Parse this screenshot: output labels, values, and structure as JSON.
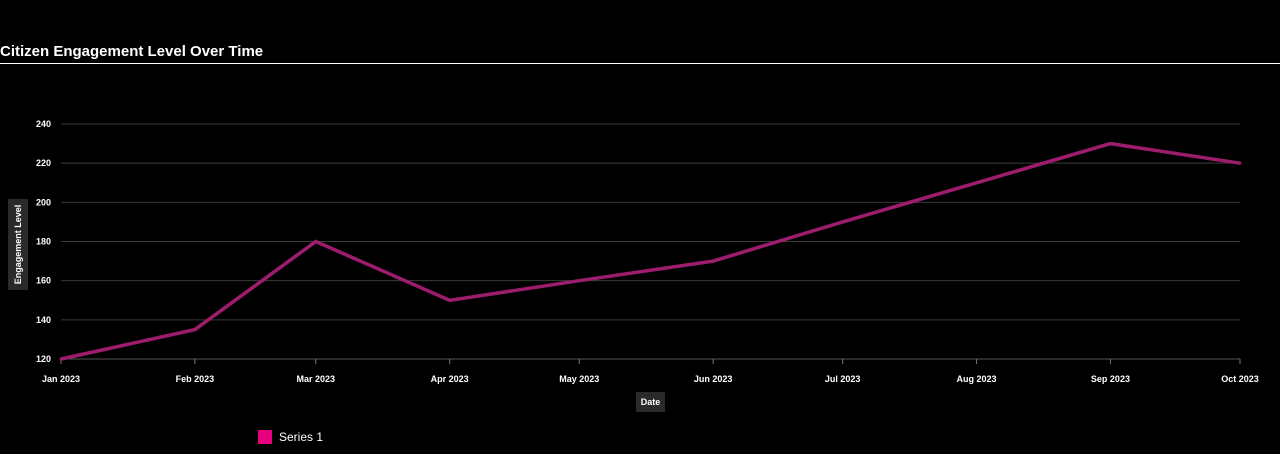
{
  "title": "Citizen Engagement Level Over Time",
  "colors": {
    "background": "#000000",
    "text": "#ffffff",
    "grid": "#3a3a3a",
    "line": "#9e1c6e",
    "legend_swatch": "#e6007e",
    "axis_title_bg": "#2a2a2a"
  },
  "legend": {
    "items": [
      {
        "label": "Series 1",
        "color": "#e6007e"
      }
    ]
  },
  "chart_data": {
    "type": "line",
    "title": "Citizen Engagement Level Over Time",
    "xlabel": "Date",
    "ylabel": "Engagement Level",
    "x": [
      "Jan 2023",
      "Feb 2023",
      "Mar 2023",
      "Apr 2023",
      "May 2023",
      "Jun 2023",
      "Jul 2023",
      "Aug 2023",
      "Sep 2023",
      "Oct 2023"
    ],
    "x_dates": [
      "2023-01-01",
      "2023-02-01",
      "2023-03-01",
      "2023-04-01",
      "2023-05-01",
      "2023-06-01",
      "2023-07-01",
      "2023-08-01",
      "2023-09-01",
      "2023-10-01"
    ],
    "series": [
      {
        "name": "Series 1",
        "values": [
          120,
          135,
          180,
          150,
          160,
          170,
          190,
          210,
          230,
          220
        ]
      }
    ],
    "yticks": [
      120,
      140,
      160,
      180,
      200,
      220,
      240
    ],
    "ylim": [
      120,
      240
    ],
    "grid": true,
    "legend_position": "bottom-left"
  }
}
